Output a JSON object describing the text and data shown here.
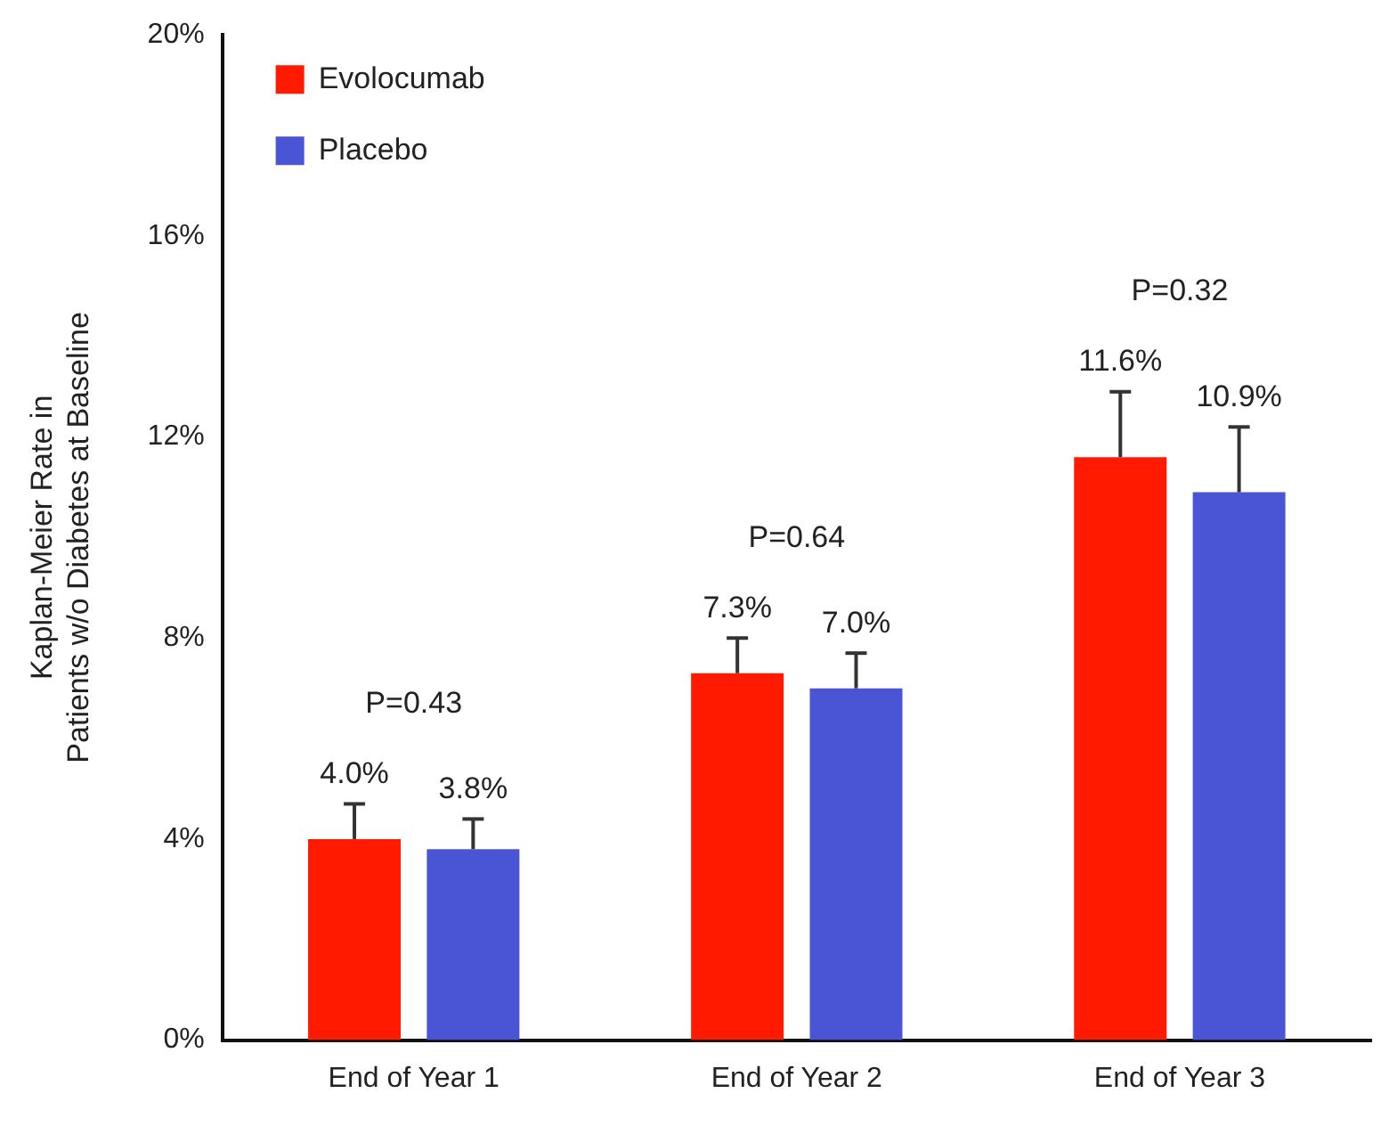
{
  "chart_data": {
    "type": "bar",
    "ylabel": "Kaplan-Meier Rate in\nPatients w/o Diabetes at Baseline",
    "categories": [
      "End of Year 1",
      "End of Year 2",
      "End of Year 3"
    ],
    "series": [
      {
        "name": "Evolocumab",
        "color": "#ff1a00",
        "values": [
          4.0,
          7.3,
          11.6
        ],
        "errors": [
          [
            4.0,
            4.7
          ],
          [
            7.3,
            8.0
          ],
          [
            11.6,
            12.9
          ]
        ],
        "value_labels": [
          "4.0%",
          "7.3%",
          "11.6%"
        ]
      },
      {
        "name": "Placebo",
        "color": "#4a55d6",
        "values": [
          3.8,
          7.0,
          10.9
        ],
        "errors": [
          [
            3.8,
            4.4
          ],
          [
            7.0,
            7.7
          ],
          [
            10.9,
            12.2
          ]
        ],
        "value_labels": [
          "3.8%",
          "7.0%",
          "10.9%"
        ]
      }
    ],
    "ylim": [
      0,
      20
    ],
    "yticks": [
      {
        "value": 0,
        "label": "0%"
      },
      {
        "value": 4,
        "label": "4%"
      },
      {
        "value": 8,
        "label": "8%"
      },
      {
        "value": 12,
        "label": "12%"
      },
      {
        "value": 16,
        "label": "16%"
      },
      {
        "value": 20,
        "label": "20%"
      }
    ],
    "annotations": [
      "P=0.43",
      "P=0.64",
      "P=0.32"
    ],
    "grid": false,
    "legend": "top left"
  }
}
